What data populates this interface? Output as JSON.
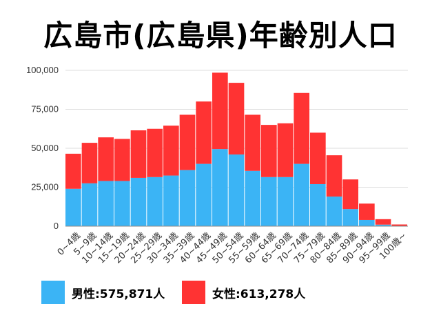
{
  "chart_data": {
    "type": "bar",
    "stacked": true,
    "title": "広島市(広島県)年齢別人口",
    "categories": [
      "0~4歳",
      "5~9歳",
      "10~14歳",
      "15~19歳",
      "20~24歳",
      "25~29歳",
      "30~34歳",
      "35~39歳",
      "40~44歳",
      "45~49歳",
      "50~54歳",
      "55~59歳",
      "60~64歳",
      "65~69歳",
      "70~74歳",
      "75~79歳",
      "80~84歳",
      "85~89歳",
      "90~94歳",
      "95~99歳",
      "100歳~"
    ],
    "series": [
      {
        "name": "男性",
        "color": "#3bb4f5",
        "values": [
          24000,
          27500,
          29000,
          29000,
          31000,
          31500,
          32500,
          36000,
          40000,
          49500,
          46000,
          35500,
          31500,
          31500,
          40000,
          27000,
          19000,
          11000,
          4000,
          1000,
          200
        ]
      },
      {
        "name": "女性",
        "color": "#ff3333",
        "values": [
          22500,
          26000,
          28000,
          27000,
          30500,
          31000,
          32000,
          35500,
          40000,
          49000,
          46000,
          36000,
          33500,
          34500,
          45500,
          33000,
          26500,
          19000,
          10500,
          3500,
          900
        ]
      }
    ],
    "yticks": [
      "0",
      "25,000",
      "50,000",
      "75,000",
      "100,000"
    ],
    "ytick_values": [
      0,
      25000,
      50000,
      75000,
      100000
    ],
    "ylim": [
      0,
      100000
    ],
    "grid": true,
    "legend_position": "bottom"
  },
  "legend": [
    {
      "label": "男性:575,871人",
      "color": "#3bb4f5"
    },
    {
      "label": "女性:613,278人",
      "color": "#ff3333"
    }
  ]
}
